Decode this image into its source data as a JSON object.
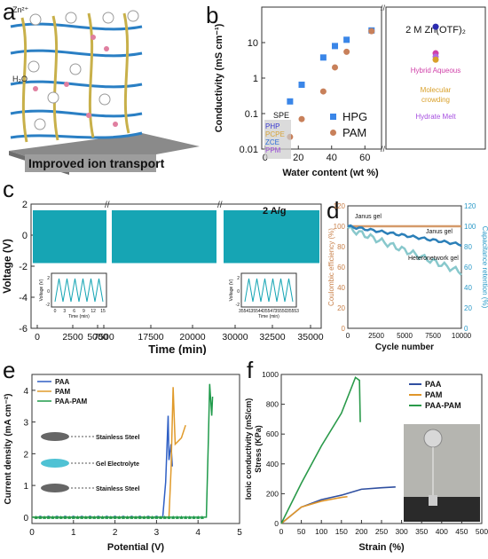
{
  "panel_labels": {
    "a": "a",
    "b": "b",
    "c": "c",
    "d": "d",
    "e": "e",
    "f": "f"
  },
  "panel_a": {
    "ion_label": "Zn²⁺",
    "water_label": "H₂O",
    "caption": "Improved ion transport",
    "colors": {
      "blue_fiber": "#2a7fc4",
      "yellow_fiber": "#c8b04a",
      "plate": "#8a8a8a",
      "caption_bg": "#9d9d9d"
    }
  },
  "chart_data": [
    {
      "id": "b",
      "type": "scatter",
      "xlabel": "Water content (wt %)",
      "ylabel": "Conductivity (mS cm⁻¹)",
      "ylog": true,
      "ylim": [
        0.01,
        100
      ],
      "xlim": [
        -2,
        70
      ],
      "xticks": [
        0,
        20,
        40,
        60
      ],
      "yticks": [
        "0.01",
        "0.1",
        "1",
        "10"
      ],
      "series": [
        {
          "name": "HPG",
          "color": "#3a86e8",
          "marker": "square",
          "points": [
            [
              15,
              0.22
            ],
            [
              22,
              0.65
            ],
            [
              35,
              3.8
            ],
            [
              42,
              8
            ],
            [
              49,
              12
            ],
            [
              64,
              22
            ]
          ]
        },
        {
          "name": "PAM",
          "color": "#c8805a",
          "marker": "circle",
          "points": [
            [
              15,
              0.022
            ],
            [
              22,
              0.07
            ],
            [
              35,
              0.42
            ],
            [
              42,
              2
            ],
            [
              49,
              5.5
            ],
            [
              64,
              21
            ]
          ]
        }
      ],
      "spe_box": {
        "title": "SPE",
        "items": [
          {
            "label": "PHP",
            "color": "#3b3bd0"
          },
          {
            "label": "PCPE",
            "color": "#d8a43a"
          },
          {
            "label": "ZCE",
            "color": "#2d6ed8"
          },
          {
            "label": "PPM",
            "color": "#9b4fd6"
          }
        ]
      },
      "right_panel": {
        "title": "2 M Zn(OTF)₂",
        "dots": [
          {
            "color": "#2b2bb0",
            "y": 28
          },
          {
            "color": "#d040a8",
            "y": 5
          },
          {
            "color": "#b26be0",
            "y": 4
          },
          {
            "color": "#d9a02a",
            "y": 3.3
          }
        ],
        "labels": [
          {
            "text": "Hybrid Aqueous",
            "color": "#d040a8"
          },
          {
            "text": "Molecular crowding",
            "color": "#d9a02a"
          },
          {
            "text": "Hydrate Melt",
            "color": "#a64fe0"
          }
        ]
      }
    },
    {
      "id": "c",
      "type": "line",
      "xlabel": "Time (min)",
      "ylabel": "Voltage (V)",
      "ylim": [
        -6,
        2
      ],
      "yticks": [
        "-6",
        "-4",
        "-2",
        "0",
        "2"
      ],
      "xticks": [
        "0",
        "2500",
        "5000",
        "7500",
        "17500",
        "20000",
        "30000",
        "32500",
        "35000"
      ],
      "annotation": "2 A/g",
      "band": {
        "upper": 1.6,
        "lower": -1.8,
        "color": "#16a5b4"
      },
      "inset1": {
        "xticks": [
          "0",
          "3",
          "6",
          "9",
          "12",
          "15"
        ],
        "ylabel": "Voltage (V)",
        "xlabel": "Time (min)",
        "yticks": [
          "-2",
          "0",
          "2"
        ]
      },
      "inset2": {
        "xticks": [
          "35541",
          "35544",
          "35547",
          "35550",
          "35553"
        ],
        "ylabel": "Voltage (V)",
        "xlabel": "Time (min)",
        "yticks": [
          "-2",
          "0",
          "2"
        ]
      }
    },
    {
      "id": "d",
      "type": "line",
      "xlabel": "Cycle number",
      "ylabel_left": "Coulombic efficiency (%)",
      "ylabel_right": "Capacitance retention (%)",
      "xlim": [
        0,
        10000
      ],
      "xticks": [
        "0",
        "2500",
        "5000",
        "7500",
        "10000"
      ],
      "yticks": [
        "0",
        "20",
        "40",
        "60",
        "80",
        "100",
        "120"
      ],
      "annotations": [
        "Janus gel",
        "Janus gel",
        "Heteronetwork gel"
      ],
      "series": [
        {
          "name": "Janus gel CE",
          "color": "#d59a6a",
          "level": 100
        },
        {
          "name": "Janus gel retention",
          "color": "#2b7fb8",
          "start": 100,
          "end": 82
        },
        {
          "name": "Heteronetwork gel",
          "color": "#88c8cc",
          "start": 98,
          "end": 55
        }
      ]
    },
    {
      "id": "e",
      "type": "line",
      "xlabel": "Potential (V)",
      "ylabel": "Current density (mA cm⁻²)",
      "xlim": [
        0,
        5
      ],
      "ylim": [
        -0.2,
        4.5
      ],
      "xticks": [
        "0",
        "1",
        "2",
        "3",
        "4",
        "5"
      ],
      "yticks": [
        "0",
        "1",
        "2",
        "3",
        "4"
      ],
      "series": [
        {
          "name": "PAA",
          "color": "#2f5fc4",
          "onset": 3.15,
          "points": [
            [
              3.15,
              0
            ],
            [
              3.22,
              1.1
            ],
            [
              3.28,
              3.2
            ],
            [
              3.3,
              1.8
            ],
            [
              3.35,
              2.3
            ],
            [
              3.38,
              1.6
            ]
          ]
        },
        {
          "name": "PAM",
          "color": "#e09a2a",
          "onset": 3.3,
          "points": [
            [
              3.3,
              0
            ],
            [
              3.35,
              1.5
            ],
            [
              3.4,
              4.1
            ],
            [
              3.45,
              2.3
            ],
            [
              3.6,
              2.5
            ],
            [
              3.7,
              2.9
            ]
          ]
        },
        {
          "name": "PAA-PAM",
          "color": "#1f9a4a",
          "onset": 4.2,
          "points": [
            [
              4.2,
              0
            ],
            [
              4.25,
              2.5
            ],
            [
              4.28,
              4.2
            ],
            [
              4.33,
              3.2
            ],
            [
              4.35,
              3.8
            ]
          ]
        }
      ],
      "legend_labels": [
        "PAA",
        "PAM",
        "PAA-PAM"
      ],
      "schematic": [
        "Stainless Steel",
        "Gel Electrolyte",
        "Stainless Steel"
      ]
    },
    {
      "id": "f",
      "type": "line",
      "xlabel": "Strain (%)",
      "ylabel": "Ionic conductivity (mS/cm) Stress (KPa)",
      "xlim": [
        0,
        500
      ],
      "ylim": [
        0,
        1000
      ],
      "xticks": [
        "0",
        "50",
        "100",
        "150",
        "200",
        "250",
        "300",
        "350",
        "400",
        "450",
        "500"
      ],
      "yticks": [
        "0",
        "200",
        "400",
        "600",
        "800",
        "1000"
      ],
      "series": [
        {
          "name": "PAA",
          "color": "#2f4fa0",
          "points": [
            [
              0,
              0
            ],
            [
              50,
              110
            ],
            [
              100,
              160
            ],
            [
              150,
              190
            ],
            [
              200,
              230
            ],
            [
              250,
              240
            ],
            [
              285,
              245
            ]
          ]
        },
        {
          "name": "PAM",
          "color": "#e0962a",
          "points": [
            [
              0,
              0
            ],
            [
              50,
              110
            ],
            [
              100,
              150
            ],
            [
              150,
              175
            ],
            [
              165,
              180
            ]
          ]
        },
        {
          "name": "PAA-PAM",
          "color": "#2a9a4a",
          "points": [
            [
              0,
              0
            ],
            [
              50,
              270
            ],
            [
              100,
              520
            ],
            [
              150,
              740
            ],
            [
              185,
              980
            ],
            [
              195,
              960
            ],
            [
              197,
              680
            ]
          ]
        }
      ]
    }
  ]
}
